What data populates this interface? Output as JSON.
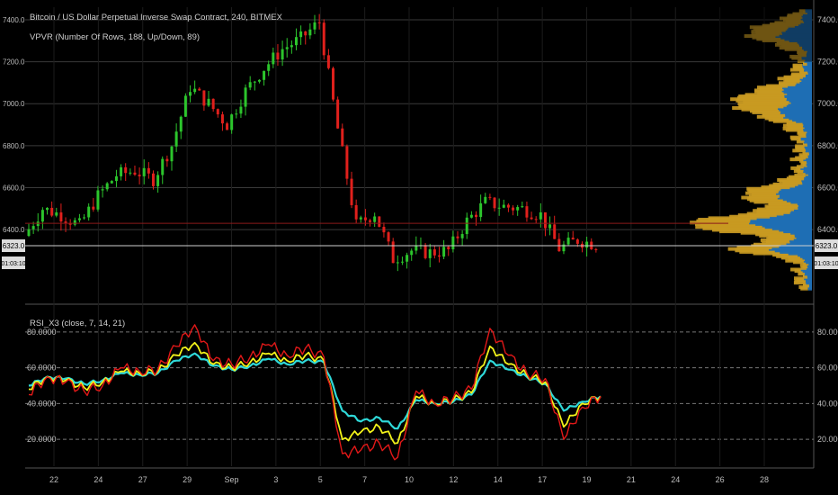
{
  "header": {
    "title": "Bitcoin / US Dollar Perpetual Inverse Swap Contract, 240, BITMEX",
    "indicator": "VPVR (Number Of Rows, 188, Up/Down, 89)",
    "osc_label": "RSI_X3 (close, 7, 14, 21)"
  },
  "colors": {
    "up": "#2cc52c",
    "down": "#e0201c",
    "vol_up": "#1f6fb4",
    "vol_down": "#c99a22",
    "rsi7": "#e21818",
    "rsi14": "#f2f21a",
    "rsi21": "#2fd9d9",
    "grid": "#3a3a3a"
  },
  "chart_data": [
    {
      "type": "candlestick",
      "title": "Bitcoin / US Dollar Perpetual Inverse Swap Contract, 240, BITMEX",
      "ylim": [
        6100,
        7460
      ],
      "yticks": [
        "7400.0",
        "7200.0",
        "7000.0",
        "6800.0",
        "6600.0",
        "6400.0"
      ],
      "price_tag": "6323.0",
      "time_tag": "01:03:10",
      "xticks": [
        "22",
        "24",
        "27",
        "29",
        "Sep",
        "3",
        "5",
        "7",
        "10",
        "12",
        "14",
        "17",
        "19",
        "21",
        "24",
        "26",
        "28"
      ],
      "close_path": [
        {
          "x": "20",
          "y": 6370
        },
        {
          "x": "21",
          "y": 6500
        },
        {
          "x": "22",
          "y": 6470
        },
        {
          "x": "23",
          "y": 6420
        },
        {
          "x": "24",
          "y": 6560
        },
        {
          "x": "25",
          "y": 6660
        },
        {
          "x": "26",
          "y": 6680
        },
        {
          "x": "27",
          "y": 6640
        },
        {
          "x": "28",
          "y": 6800
        },
        {
          "x": "29",
          "y": 7080
        },
        {
          "x": "30",
          "y": 7000
        },
        {
          "x": "31",
          "y": 6900
        },
        {
          "x": "Sep 1",
          "y": 7060
        },
        {
          "x": "2",
          "y": 7170
        },
        {
          "x": "3",
          "y": 7260
        },
        {
          "x": "4",
          "y": 7310
        },
        {
          "x": "5",
          "y": 7390
        },
        {
          "x": "6",
          "y": 6880
        },
        {
          "x": "7",
          "y": 6420
        },
        {
          "x": "8",
          "y": 6480
        },
        {
          "x": "9",
          "y": 6260
        },
        {
          "x": "10",
          "y": 6300
        },
        {
          "x": "11",
          "y": 6290
        },
        {
          "x": "12",
          "y": 6300
        },
        {
          "x": "13",
          "y": 6440
        },
        {
          "x": "14",
          "y": 6530
        },
        {
          "x": "15",
          "y": 6510
        },
        {
          "x": "16",
          "y": 6500
        },
        {
          "x": "17",
          "y": 6470
        },
        {
          "x": "18",
          "y": 6310
        },
        {
          "x": "19",
          "y": 6350
        },
        {
          "x": "19.5",
          "y": 6330
        }
      ],
      "volume_profile_label": "VPVR (Number Of Rows, 188, Up/Down, 89)"
    },
    {
      "type": "line",
      "title": "RSI_X3 (close, 7, 14, 21)",
      "ylim": [
        5,
        92
      ],
      "yticks": [
        "80.0000",
        "60.0000",
        "40.0000",
        "20.0000"
      ],
      "x": [
        "20",
        "21",
        "22",
        "23",
        "24",
        "25",
        "26",
        "27",
        "28",
        "29",
        "30",
        "31",
        "Sep 1",
        "2",
        "3",
        "4",
        "5",
        "6",
        "7",
        "8",
        "9",
        "10",
        "11",
        "12",
        "13",
        "14",
        "15",
        "16",
        "17",
        "18",
        "19",
        "19.5"
      ],
      "series": [
        {
          "name": "7",
          "values": [
            45,
            55,
            52,
            47,
            50,
            60,
            58,
            59,
            72,
            84,
            64,
            62,
            66,
            73,
            67,
            71,
            66,
            12,
            14,
            18,
            10,
            47,
            40,
            43,
            48,
            82,
            67,
            57,
            54,
            20,
            38,
            44
          ]
        },
        {
          "name": "14",
          "values": [
            48,
            55,
            53,
            49,
            52,
            58,
            57,
            58,
            67,
            74,
            62,
            60,
            63,
            68,
            64,
            67,
            64,
            20,
            24,
            27,
            18,
            44,
            40,
            42,
            46,
            72,
            62,
            56,
            52,
            27,
            40,
            44
          ]
        },
        {
          "name": "21",
          "values": [
            50,
            55,
            54,
            51,
            53,
            57,
            56,
            57,
            64,
            68,
            61,
            59,
            61,
            65,
            62,
            64,
            63,
            36,
            30,
            32,
            26,
            42,
            40,
            41,
            45,
            64,
            59,
            55,
            51,
            36,
            41,
            44
          ]
        }
      ]
    }
  ]
}
